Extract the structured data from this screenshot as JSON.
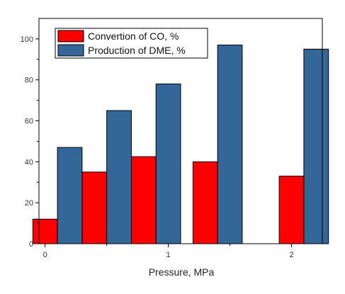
{
  "chart_data": {
    "type": "bar",
    "xlabel": "Pressure, MPa",
    "ylabel": "",
    "ylim": [
      0,
      110
    ],
    "yticks": [
      0,
      20,
      40,
      60,
      80,
      100
    ],
    "x_ticks": [
      {
        "label": "0",
        "value": 0
      },
      {
        "label": "1",
        "value": 1
      },
      {
        "label": "2",
        "value": 2
      }
    ],
    "x_range": [
      -0.05,
      2.25
    ],
    "bar_width": 0.2,
    "legend": "top-left",
    "grid": false,
    "series": [
      {
        "name": "Convertion of CO, %",
        "color": "#ff0000",
        "x": [
          0.0,
          0.4,
          0.8,
          1.3,
          2.0
        ],
        "values": [
          12,
          35,
          42.5,
          40,
          33
        ]
      },
      {
        "name": "Production of DME, %",
        "color": "#336699",
        "x": [
          0.2,
          0.6,
          1.0,
          1.5,
          2.2
        ],
        "values": [
          47,
          65,
          78,
          97,
          95
        ]
      }
    ]
  }
}
